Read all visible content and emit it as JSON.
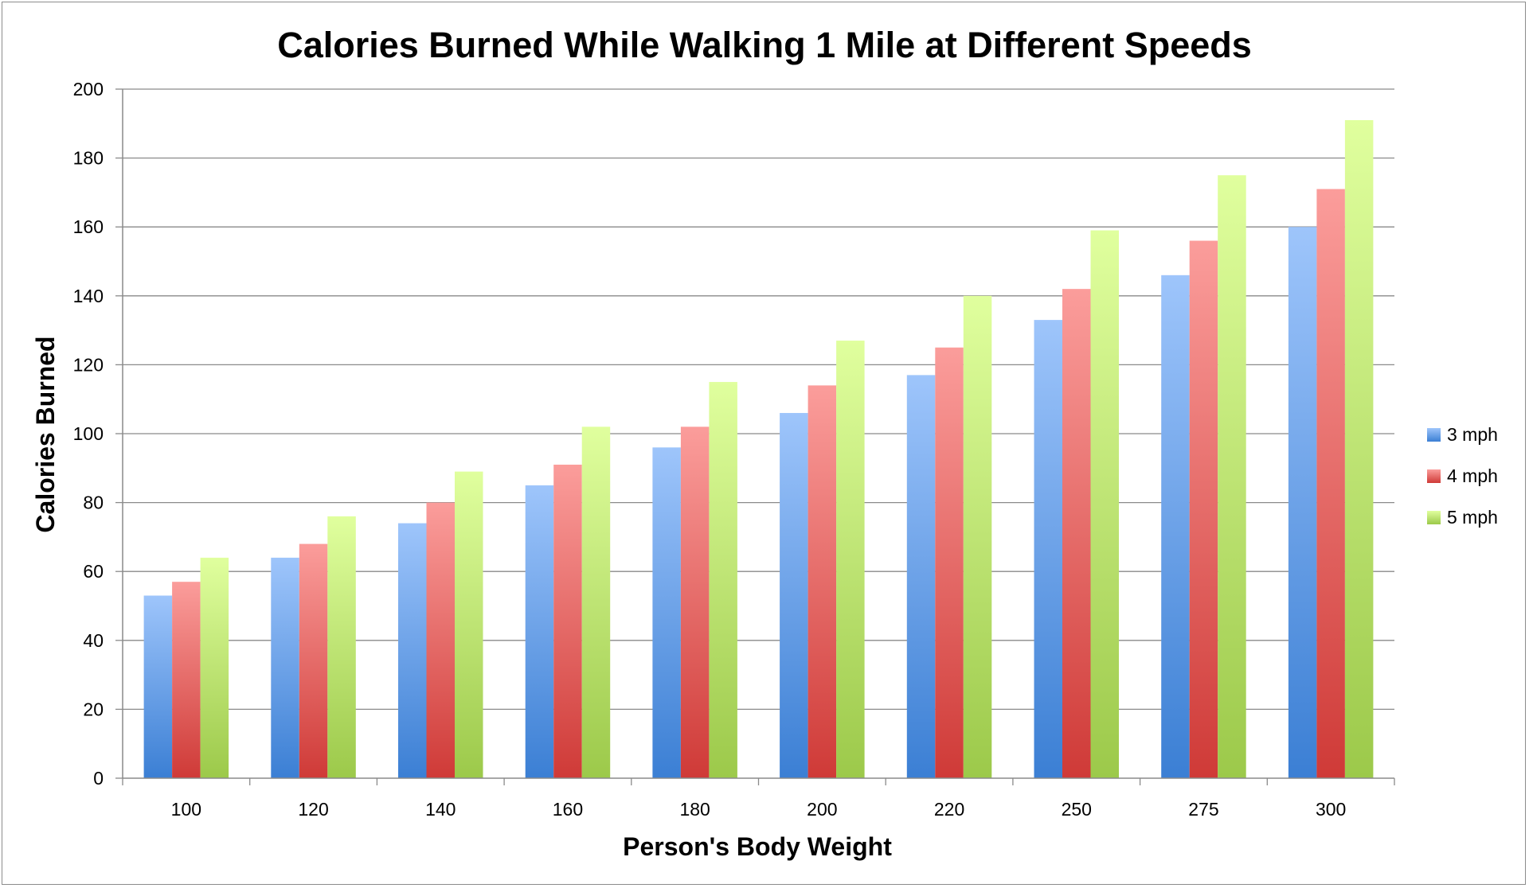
{
  "chart_data": {
    "type": "bar",
    "title": "Calories Burned While Walking 1 Mile at Different Speeds",
    "xlabel": "Person's Body Weight",
    "ylabel": "Calories Burned",
    "categories": [
      "100",
      "120",
      "140",
      "160",
      "180",
      "200",
      "220",
      "250",
      "275",
      "300"
    ],
    "series": [
      {
        "name": "3 mph",
        "values": [
          53,
          64,
          74,
          85,
          96,
          106,
          117,
          133,
          146,
          160
        ],
        "color_top": "#9ec5fb",
        "color_bottom": "#3b7fd4"
      },
      {
        "name": "4 mph",
        "values": [
          57,
          68,
          80,
          91,
          102,
          114,
          125,
          142,
          156,
          171
        ],
        "color_top": "#fb9d9b",
        "color_bottom": "#cf3a37"
      },
      {
        "name": "5 mph",
        "values": [
          64,
          76,
          89,
          102,
          115,
          127,
          140,
          159,
          175,
          191
        ],
        "color_top": "#e0ff9e",
        "color_bottom": "#9cc94a"
      }
    ],
    "ylim": [
      0,
      200
    ],
    "yticks": [
      0,
      20,
      40,
      60,
      80,
      100,
      120,
      140,
      160,
      180,
      200
    ],
    "grid": true,
    "legend": "right"
  }
}
